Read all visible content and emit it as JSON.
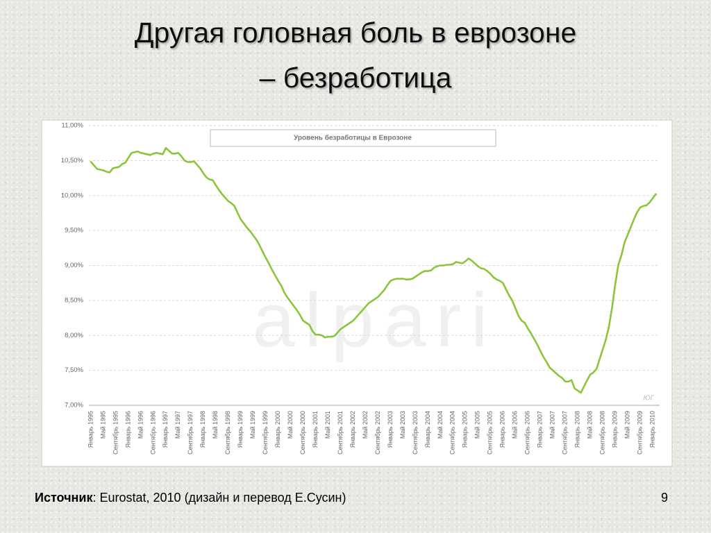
{
  "slide": {
    "title": [
      "Другая головная боль в еврозоне",
      "– безработица"
    ],
    "source_label": "Источник",
    "source_text": ": Eurostat, 2010 (дизайн и перевод Е.Сусин)",
    "page_number": 9
  },
  "chart_data": {
    "type": "line",
    "title": "Уровень безработицы в Еврозоне",
    "watermark": "alpari",
    "credit": "ЮГ",
    "color": "#8cc43a",
    "grid": true,
    "ylim": [
      7,
      11
    ],
    "yticks": [
      {
        "value": 7,
        "label": "7,00%"
      },
      {
        "value": 7.5,
        "label": "7,50%"
      },
      {
        "value": 8,
        "label": "8,00%"
      },
      {
        "value": 8.5,
        "label": "8,50%"
      },
      {
        "value": 9,
        "label": "9,00%"
      },
      {
        "value": 9.5,
        "label": "9,50%"
      },
      {
        "value": 10,
        "label": "10,00%"
      },
      {
        "value": 10.5,
        "label": "10,50%"
      },
      {
        "value": 11,
        "label": "11,00%"
      }
    ],
    "categories": [
      "Январь 1995",
      null,
      null,
      null,
      "Май 1995",
      null,
      null,
      null,
      "Сентябрь 1995",
      null,
      null,
      null,
      "Январь 1996",
      null,
      null,
      null,
      "Май 1996",
      null,
      null,
      null,
      "Сентябрь 1996",
      null,
      null,
      null,
      "Январь 1997",
      null,
      null,
      null,
      "Май 1997",
      null,
      null,
      null,
      "Сентябрь 1997",
      null,
      null,
      null,
      "Январь 1998",
      null,
      null,
      null,
      "Май 1998",
      null,
      null,
      null,
      "Сентябрь 1998",
      null,
      null,
      null,
      "Январь 1999",
      null,
      null,
      null,
      "Май 1999",
      null,
      null,
      null,
      "Сентябрь 1999",
      null,
      null,
      null,
      "Январь 2000",
      null,
      null,
      null,
      "Май 2000",
      null,
      null,
      null,
      "Сентябрь 2000",
      null,
      null,
      null,
      "Январь 2001",
      null,
      null,
      null,
      "Май 2001",
      null,
      null,
      null,
      "Сентябрь 2001",
      null,
      null,
      null,
      "Январь 2002",
      null,
      null,
      null,
      "Май 2002",
      null,
      null,
      null,
      "Сентябрь 2002",
      null,
      null,
      null,
      "Январь 2003",
      null,
      null,
      null,
      "Май 2003",
      null,
      null,
      null,
      "Сентябрь 2003",
      null,
      null,
      null,
      "Январь 2004",
      null,
      null,
      null,
      "Май 2004",
      null,
      null,
      null,
      "Сентябрь 2004",
      null,
      null,
      null,
      "Январь 2005",
      null,
      null,
      null,
      "Май 2005",
      null,
      null,
      null,
      "Сентябрь 2005",
      null,
      null,
      null,
      "Январь 2006",
      null,
      null,
      null,
      "Май 2006",
      null,
      null,
      null,
      "Сентябрь 2006",
      null,
      null,
      null,
      "Январь 2007",
      null,
      null,
      null,
      "Май 2007",
      null,
      null,
      null,
      "Сентябрь 2007",
      null,
      null,
      null,
      "Январь 2008",
      null,
      null,
      null,
      "Май 2008",
      null,
      null,
      null,
      "Сентябрь 2008",
      null,
      null,
      null,
      "Январь 2009",
      null,
      null,
      null,
      "Май 2009",
      null,
      null,
      null,
      "Сентябрь 2009",
      null,
      null,
      null,
      "Январь 2010",
      null
    ],
    "values": [
      10.48,
      10.43,
      10.38,
      10.37,
      10.36,
      10.34,
      10.33,
      10.39,
      10.4,
      10.41,
      10.45,
      10.47,
      10.54,
      10.61,
      10.62,
      10.63,
      10.61,
      10.6,
      10.59,
      10.58,
      10.6,
      10.61,
      10.6,
      10.59,
      10.68,
      10.64,
      10.6,
      10.6,
      10.61,
      10.56,
      10.5,
      10.48,
      10.48,
      10.49,
      10.44,
      10.39,
      10.32,
      10.26,
      10.23,
      10.22,
      10.15,
      10.08,
      10.02,
      9.97,
      9.92,
      9.89,
      9.85,
      9.75,
      9.66,
      9.6,
      9.54,
      9.49,
      9.43,
      9.37,
      9.29,
      9.2,
      9.11,
      9.03,
      8.94,
      8.86,
      8.78,
      8.71,
      8.61,
      8.54,
      8.48,
      8.42,
      8.36,
      8.29,
      8.21,
      8.18,
      8.15,
      8.06,
      8.01,
      8.01,
      8.0,
      7.97,
      7.98,
      7.98,
      7.99,
      8.04,
      8.09,
      8.12,
      8.15,
      8.18,
      8.21,
      8.26,
      8.31,
      8.36,
      8.41,
      8.46,
      8.49,
      8.52,
      8.55,
      8.6,
      8.65,
      8.72,
      8.78,
      8.8,
      8.81,
      8.81,
      8.81,
      8.8,
      8.8,
      8.81,
      8.84,
      8.87,
      8.9,
      8.92,
      8.92,
      8.93,
      8.97,
      8.99,
      9.0,
      9.0,
      9.01,
      9.01,
      9.02,
      9.05,
      9.04,
      9.03,
      9.06,
      9.1,
      9.07,
      9.03,
      8.99,
      8.96,
      8.95,
      8.92,
      8.88,
      8.83,
      8.8,
      8.78,
      8.75,
      8.66,
      8.57,
      8.5,
      8.39,
      8.28,
      8.21,
      8.18,
      8.1,
      8.03,
      7.95,
      7.87,
      7.78,
      7.69,
      7.62,
      7.54,
      7.5,
      7.46,
      7.42,
      7.39,
      7.34,
      7.34,
      7.36,
      7.24,
      7.21,
      7.18,
      7.27,
      7.36,
      7.44,
      7.47,
      7.52,
      7.66,
      7.8,
      7.94,
      8.13,
      8.4,
      8.73,
      9.01,
      9.15,
      9.33,
      9.44,
      9.55,
      9.66,
      9.76,
      9.83,
      9.85,
      9.86,
      9.9,
      9.96,
      10.02
    ]
  }
}
